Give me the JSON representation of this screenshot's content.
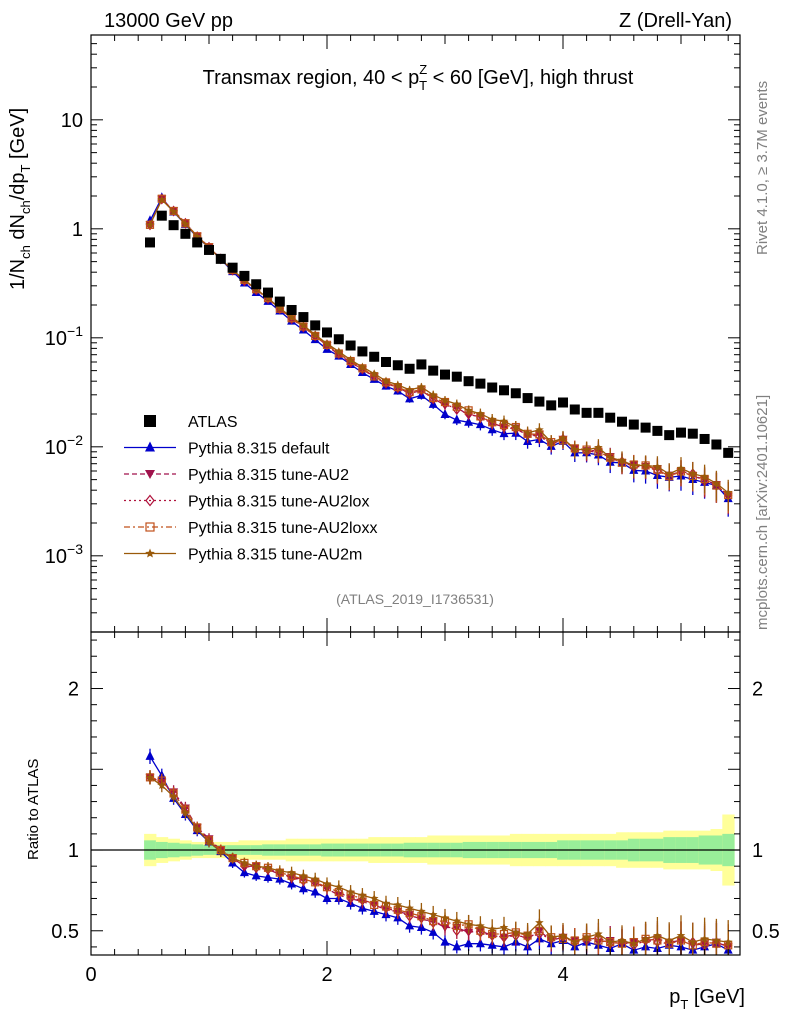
{
  "header": {
    "left": "13000 GeV pp",
    "right": "Z (Drell-Yan)"
  },
  "title_parts": {
    "a": "Transmax region, 40 < p",
    "sup": "Z",
    "sub": "T",
    "b": " < 60 [GeV], high thrust"
  },
  "side_text": {
    "rivet": "Rivet 4.1.0, ≥ 3.7M events",
    "mcplots": "mcplots.cern.ch [arXiv:2401.10621]"
  },
  "analysis_id": "(ATLAS_2019_I1736531)",
  "axis": {
    "top_ylabel": {
      "a": "1/N",
      "s1": "ch",
      "b": " dN",
      "s2": "ch",
      "c": "/dp",
      "s3": "T",
      "d": " [GeV]"
    },
    "bottom_ylabel": "Ratio to ATLAS",
    "xlabel": {
      "a": "p",
      "s": "T",
      "b": " [GeV]"
    },
    "top_yticks": [
      {
        "value": 10,
        "base": "10",
        "exp": ""
      },
      {
        "value": 1,
        "base": "1",
        "exp": ""
      },
      {
        "value": 0.1,
        "base": "10",
        "exp": "−1"
      },
      {
        "value": 0.01,
        "base": "10",
        "exp": "−2"
      },
      {
        "value": 0.001,
        "base": "10",
        "exp": "−3"
      }
    ],
    "ratio_yticks": [
      "0.5",
      "1",
      "2"
    ],
    "xticks": [
      "0",
      "2",
      "4"
    ]
  },
  "legend": [
    {
      "label": "ATLAS",
      "color": "#000000",
      "marker": "square"
    },
    {
      "label": "Pythia 8.315 default",
      "color": "#0000cc",
      "marker": "triangle-up"
    },
    {
      "label": "Pythia 8.315 tune-AU2",
      "color": "#a0124c",
      "marker": "triangle-down"
    },
    {
      "label": "Pythia 8.315 tune-AU2lox",
      "color": "#b0123c",
      "marker": "diamond-open"
    },
    {
      "label": "Pythia 8.315 tune-AU2loxx",
      "color": "#c0501a",
      "marker": "square-open"
    },
    {
      "label": "Pythia 8.315 tune-AU2m",
      "color": "#9a5a0a",
      "marker": "star"
    }
  ],
  "chart_data": {
    "type": "scatter",
    "xlabel": "p_T [GeV]",
    "ylabel": "1/N_ch dN_ch/dp_T [GeV]",
    "xlim": [
      0,
      5.5
    ],
    "ylim_log": [
      0.0002,
      60
    ],
    "ratio_ylim": [
      0.35,
      2.35
    ],
    "x": [
      0.5,
      0.6,
      0.7,
      0.8,
      0.9,
      1.0,
      1.1,
      1.2,
      1.3,
      1.4,
      1.5,
      1.6,
      1.7,
      1.8,
      1.9,
      2.0,
      2.1,
      2.2,
      2.3,
      2.4,
      2.5,
      2.6,
      2.7,
      2.8,
      2.9,
      3.0,
      3.1,
      3.2,
      3.3,
      3.4,
      3.5,
      3.6,
      3.7,
      3.8,
      3.9,
      4.0,
      4.1,
      4.2,
      4.3,
      4.4,
      4.5,
      4.6,
      4.7,
      4.8,
      4.9,
      5.0,
      5.1,
      5.2,
      5.3,
      5.4
    ],
    "atlas": [
      0.75,
      1.32,
      1.08,
      0.9,
      0.75,
      0.64,
      0.53,
      0.44,
      0.37,
      0.31,
      0.26,
      0.215,
      0.18,
      0.155,
      0.13,
      0.112,
      0.097,
      0.085,
      0.075,
      0.067,
      0.06,
      0.056,
      0.052,
      0.057,
      0.05,
      0.046,
      0.044,
      0.04,
      0.038,
      0.035,
      0.033,
      0.031,
      0.028,
      0.026,
      0.024,
      0.0255,
      0.022,
      0.0205,
      0.0205,
      0.0185,
      0.017,
      0.016,
      0.015,
      0.014,
      0.0128,
      0.0135,
      0.0132,
      0.0118,
      0.0105,
      0.0088
    ],
    "atlas_band_inner": [
      0.06,
      0.05,
      0.045,
      0.04,
      0.035,
      0.03,
      0.03,
      0.03,
      0.03,
      0.03,
      0.035,
      0.035,
      0.035,
      0.035,
      0.035,
      0.04,
      0.04,
      0.04,
      0.04,
      0.04,
      0.04,
      0.04,
      0.045,
      0.045,
      0.045,
      0.045,
      0.045,
      0.05,
      0.05,
      0.05,
      0.05,
      0.05,
      0.05,
      0.05,
      0.05,
      0.06,
      0.06,
      0.06,
      0.06,
      0.06,
      0.06,
      0.07,
      0.07,
      0.07,
      0.08,
      0.08,
      0.08,
      0.09,
      0.09,
      0.1
    ],
    "atlas_band_outer": [
      0.1,
      0.08,
      0.07,
      0.06,
      0.05,
      0.05,
      0.05,
      0.05,
      0.06,
      0.06,
      0.06,
      0.06,
      0.07,
      0.07,
      0.07,
      0.07,
      0.07,
      0.07,
      0.07,
      0.08,
      0.08,
      0.08,
      0.08,
      0.08,
      0.09,
      0.09,
      0.09,
      0.09,
      0.09,
      0.09,
      0.09,
      0.1,
      0.1,
      0.1,
      0.1,
      0.1,
      0.1,
      0.1,
      0.1,
      0.1,
      0.11,
      0.11,
      0.11,
      0.11,
      0.12,
      0.12,
      0.12,
      0.12,
      0.13,
      0.22
    ],
    "series": [
      {
        "name": "Pythia 8.315 default",
        "ratio": [
          1.58,
          1.46,
          1.32,
          1.22,
          1.12,
          1.05,
          0.99,
          0.92,
          0.86,
          0.84,
          0.83,
          0.82,
          0.79,
          0.76,
          0.74,
          0.7,
          0.7,
          0.67,
          0.64,
          0.62,
          0.6,
          0.58,
          0.53,
          0.52,
          0.49,
          0.43,
          0.4,
          0.42,
          0.42,
          0.41,
          0.4,
          0.43,
          0.4,
          0.45,
          0.42,
          0.44,
          0.4,
          0.43,
          0.41,
          0.39,
          0.42,
          0.38,
          0.4,
          0.39,
          0.41,
          0.4,
          0.38,
          0.4,
          0.42,
          0.38
        ]
      },
      {
        "name": "Pythia 8.315 tune-AU2",
        "ratio": [
          1.45,
          1.42,
          1.36,
          1.26,
          1.14,
          1.07,
          1.0,
          0.95,
          0.9,
          0.9,
          0.88,
          0.85,
          0.83,
          0.82,
          0.8,
          0.76,
          0.72,
          0.7,
          0.68,
          0.66,
          0.63,
          0.62,
          0.6,
          0.57,
          0.56,
          0.52,
          0.52,
          0.49,
          0.5,
          0.47,
          0.46,
          0.48,
          0.45,
          0.5,
          0.44,
          0.46,
          0.44,
          0.45,
          0.43,
          0.44,
          0.42,
          0.43,
          0.44,
          0.45,
          0.43,
          0.44,
          0.41,
          0.42,
          0.43,
          0.4
        ]
      },
      {
        "name": "Pythia 8.315 tune-AU2lox",
        "ratio": [
          1.45,
          1.42,
          1.35,
          1.25,
          1.13,
          1.06,
          1.0,
          0.95,
          0.9,
          0.89,
          0.88,
          0.86,
          0.83,
          0.81,
          0.8,
          0.77,
          0.74,
          0.7,
          0.69,
          0.67,
          0.64,
          0.62,
          0.59,
          0.58,
          0.55,
          0.54,
          0.5,
          0.5,
          0.49,
          0.47,
          0.46,
          0.47,
          0.46,
          0.48,
          0.45,
          0.46,
          0.43,
          0.44,
          0.46,
          0.42,
          0.43,
          0.41,
          0.44,
          0.43,
          0.42,
          0.44,
          0.43,
          0.41,
          0.42,
          0.41
        ]
      },
      {
        "name": "Pythia 8.315 tune-AU2loxx",
        "ratio": [
          1.45,
          1.43,
          1.35,
          1.25,
          1.14,
          1.06,
          1.0,
          0.95,
          0.92,
          0.9,
          0.89,
          0.86,
          0.84,
          0.82,
          0.8,
          0.77,
          0.74,
          0.72,
          0.7,
          0.66,
          0.65,
          0.63,
          0.61,
          0.59,
          0.56,
          0.56,
          0.53,
          0.54,
          0.5,
          0.48,
          0.48,
          0.49,
          0.47,
          0.5,
          0.46,
          0.45,
          0.44,
          0.46,
          0.44,
          0.43,
          0.42,
          0.43,
          0.45,
          0.44,
          0.42,
          0.44,
          0.41,
          0.43,
          0.42,
          0.41
        ]
      },
      {
        "name": "Pythia 8.315 tune-AU2m",
        "ratio": [
          1.45,
          1.4,
          1.33,
          1.23,
          1.13,
          1.05,
          0.99,
          0.95,
          0.92,
          0.9,
          0.89,
          0.87,
          0.86,
          0.84,
          0.82,
          0.79,
          0.77,
          0.74,
          0.72,
          0.7,
          0.67,
          0.66,
          0.64,
          0.62,
          0.6,
          0.58,
          0.56,
          0.54,
          0.53,
          0.51,
          0.52,
          0.49,
          0.48,
          0.55,
          0.46,
          0.47,
          0.43,
          0.46,
          0.48,
          0.43,
          0.44,
          0.42,
          0.45,
          0.47,
          0.44,
          0.47,
          0.43,
          0.45,
          0.44,
          0.43
        ]
      }
    ]
  }
}
